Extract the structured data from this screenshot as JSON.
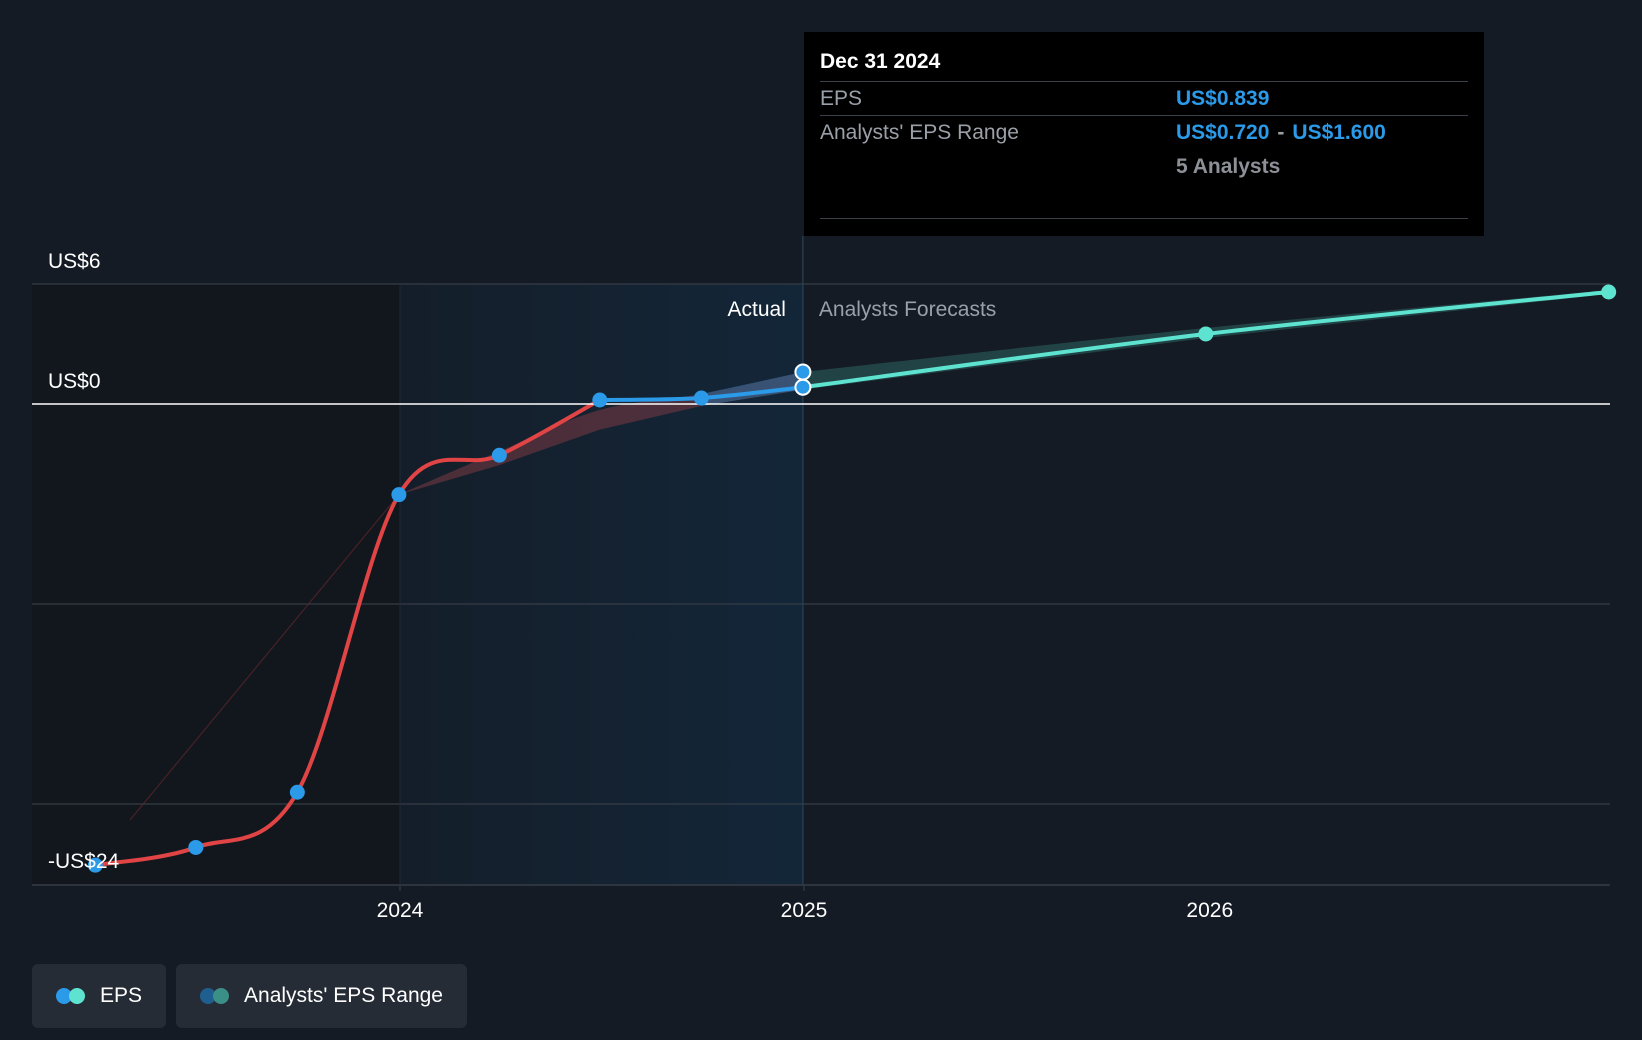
{
  "chart_data": {
    "type": "line",
    "title": "",
    "y_labels": [
      "US$6",
      "US$0",
      "-US$24"
    ],
    "x_tick_labels": [
      "2024",
      "2025",
      "2026"
    ],
    "ylim": [
      -24,
      6
    ],
    "region_labels": {
      "actual": "Actual",
      "forecast": "Analysts Forecasts"
    },
    "series": [
      {
        "name": "EPS",
        "points": [
          [
            "2023-03-31",
            -23.4
          ],
          [
            "2023-06-30",
            -22.5
          ],
          [
            "2023-09-30",
            -19.7
          ],
          [
            "2023-12-31",
            -4.6
          ],
          [
            "2024-03-31",
            -2.6
          ],
          [
            "2024-06-30",
            0.2
          ],
          [
            "2024-09-30",
            0.3
          ],
          [
            "2024-12-31",
            0.84
          ]
        ]
      },
      {
        "name": "EPS forecast",
        "points": [
          [
            "2024-12-31",
            0.84
          ],
          [
            "2025-12-31",
            3.5
          ],
          [
            "2026-12-31",
            5.6
          ]
        ]
      },
      {
        "name": "Analysts' EPS Range",
        "points": [
          [
            "2023-12-31",
            -4.6,
            -4.6
          ],
          [
            "2024-03-31",
            -3.1,
            -2.4
          ],
          [
            "2024-06-30",
            -1.3,
            -0.3
          ],
          [
            "2024-09-30",
            -0.1,
            0.5
          ],
          [
            "2024-12-31",
            0.72,
            1.6
          ],
          [
            "2025-12-31",
            3.3,
            3.8
          ],
          [
            "2026-12-31",
            5.5,
            5.7
          ]
        ]
      }
    ],
    "tooltip": {
      "date": "Dec 31 2024",
      "eps_label": "EPS",
      "eps_value": "US$0.839",
      "range_label": "Analysts' EPS Range",
      "range_low": "US$0.720",
      "range_sep": "-",
      "range_high": "US$1.600",
      "analysts": "5 Analysts"
    },
    "legend": [
      {
        "label": "EPS",
        "colors": [
          "#2b9ae8",
          "#5ee3d0"
        ]
      },
      {
        "label": "Analysts' EPS Range",
        "colors": [
          "#1f5f8f",
          "#3a8f86"
        ]
      }
    ],
    "colors": {
      "background": "#151b24",
      "eps_negative": "#e04444",
      "eps_positive": "#2b9ae8",
      "forecast": "#5ee3d0",
      "past_shade": "#12161d",
      "actual_shade": "#132638",
      "grid": "#363c46",
      "zero_line": "#ffffff"
    }
  }
}
